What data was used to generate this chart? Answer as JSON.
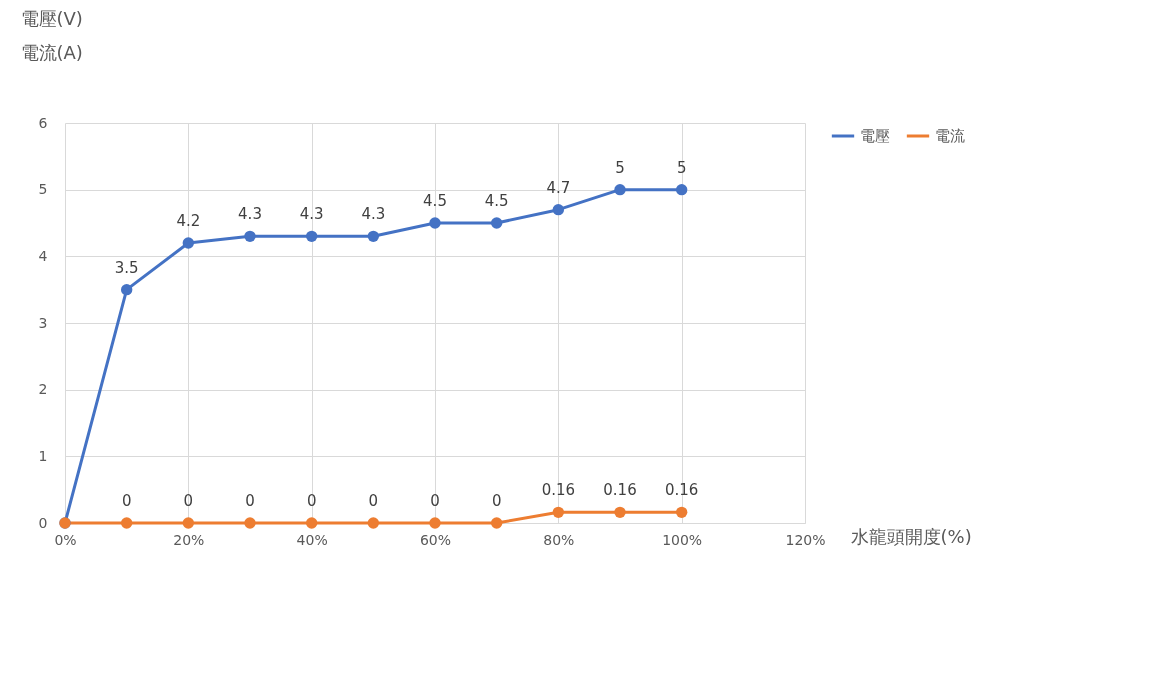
{
  "chart_data": {
    "type": "line",
    "ylabel": "電壓(V)\n電流(A)",
    "xlabel": "水龍頭開度(%)",
    "x": [
      0,
      10,
      20,
      30,
      40,
      50,
      60,
      70,
      80,
      90,
      100
    ],
    "series": [
      {
        "name": "電壓",
        "color": "#4472c4",
        "values": [
          0,
          3.5,
          4.2,
          4.3,
          4.3,
          4.3,
          4.5,
          4.5,
          4.7,
          5,
          5
        ],
        "value_labels": [
          null,
          "3.5",
          "4.2",
          "4.3",
          "4.3",
          "4.3",
          "4.5",
          "4.5",
          "4.7",
          "5",
          "5"
        ]
      },
      {
        "name": "電流",
        "color": "#ed7d31",
        "values": [
          0,
          0,
          0,
          0,
          0,
          0,
          0,
          0,
          0.16,
          0.16,
          0.16
        ],
        "value_labels": [
          null,
          "0",
          "0",
          "0",
          "0",
          "0",
          "0",
          "0",
          "0.16",
          "0.16",
          "0.16"
        ]
      }
    ],
    "xlim": [
      0,
      120
    ],
    "xticks": [
      {
        "value": 0,
        "label": "0%"
      },
      {
        "value": 20,
        "label": "20%"
      },
      {
        "value": 40,
        "label": "40%"
      },
      {
        "value": 60,
        "label": "60%"
      },
      {
        "value": 80,
        "label": "80%"
      },
      {
        "value": 100,
        "label": "100%"
      },
      {
        "value": 120,
        "label": "120%"
      }
    ],
    "ylim": [
      0,
      6
    ],
    "yticks": [
      0,
      1,
      2,
      3,
      4,
      5,
      6
    ],
    "grid": true,
    "legend": "right",
    "marker": "circle",
    "line_style": "solid"
  }
}
